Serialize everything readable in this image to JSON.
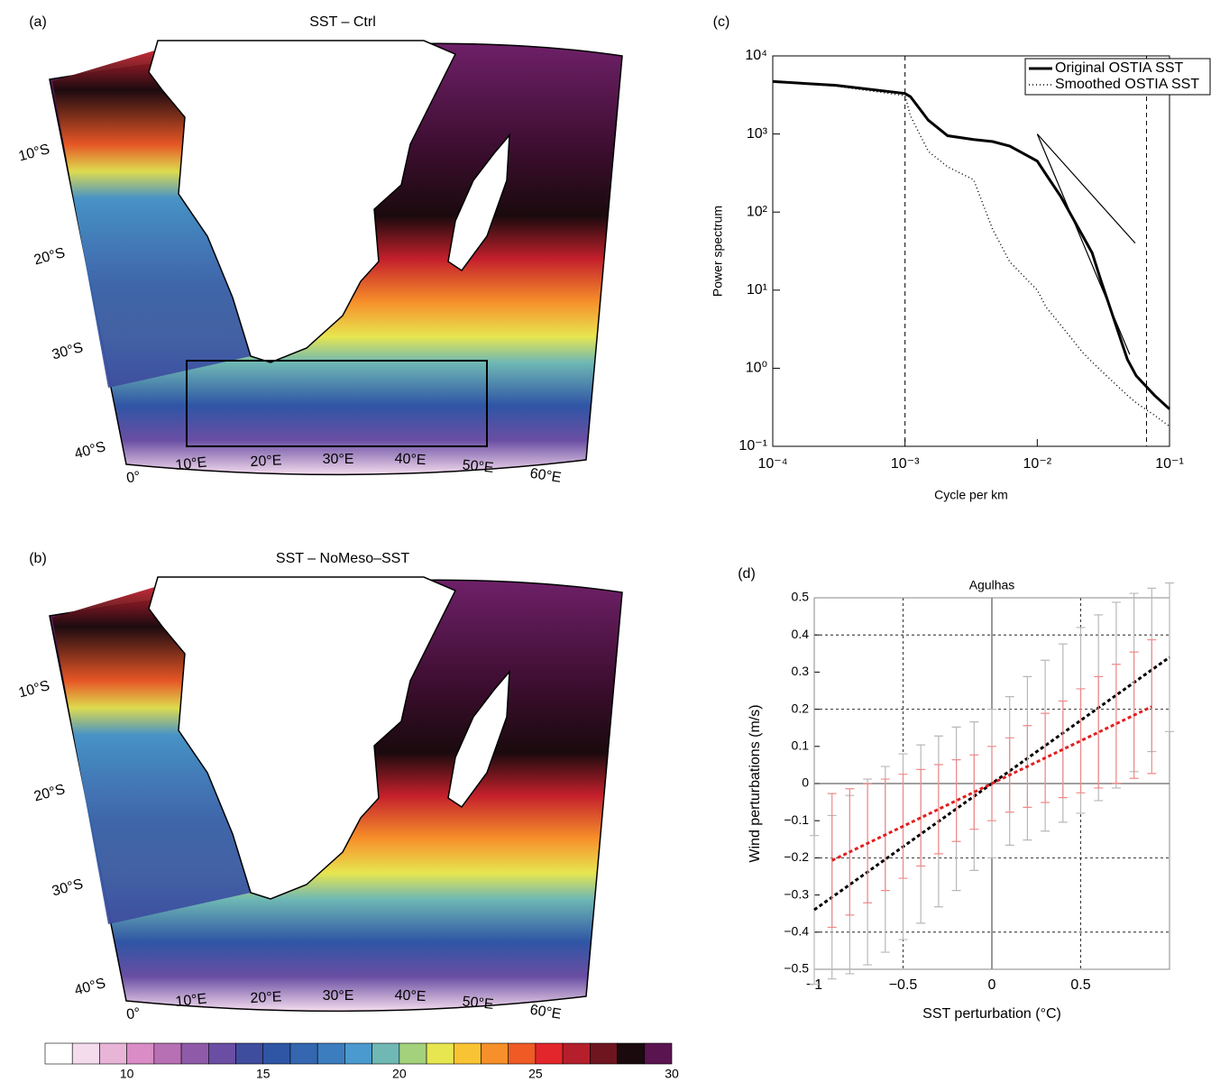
{
  "chart_data": [
    {
      "type": "map",
      "panel": "(a)",
      "title": "SST – Ctrl",
      "lat_labels": [
        "10°S",
        "20°S",
        "30°S",
        "40°S"
      ],
      "lon_labels": [
        "0°",
        "10°E",
        "20°E",
        "30°E",
        "40°E",
        "50°E",
        "60°E"
      ]
    },
    {
      "type": "map",
      "panel": "(b)",
      "title": "SST – NoMeso–SST",
      "lat_labels": [
        "10°S",
        "20°S",
        "30°S",
        "40°S"
      ],
      "lon_labels": [
        "0°",
        "10°E",
        "20°E",
        "30°E",
        "40°E",
        "50°E",
        "60°E"
      ]
    },
    {
      "type": "line",
      "panel": "(c)",
      "xlabel": "Cycle per km",
      "ylabel": "Power spectrum",
      "xlog": true,
      "ylog": true,
      "legend": "upper right",
      "xlim": [
        0.0001,
        0.1
      ],
      "ylim": [
        0.1,
        10000
      ],
      "xticks": [
        {
          "value": 0.0001,
          "label": "10⁻⁴"
        },
        {
          "value": 0.001,
          "label": "10⁻³"
        },
        {
          "value": 0.01,
          "label": "10⁻²"
        },
        {
          "value": 0.1,
          "label": "10⁻¹"
        }
      ],
      "yticks": [
        {
          "value": 0.1,
          "label": "10⁻¹"
        },
        {
          "value": 1,
          "label": "10⁰"
        },
        {
          "value": 10,
          "label": "10¹"
        },
        {
          "value": 100,
          "label": "10²"
        },
        {
          "value": 1000,
          "label": "10³"
        },
        {
          "value": 10000,
          "label": "10⁴"
        }
      ],
      "vlines": [
        0.001,
        0.067
      ],
      "reference_lines": [
        {
          "x": [
            0.01,
            0.055
          ],
          "y": [
            1000,
            40
          ]
        },
        {
          "x": [
            0.01,
            0.05
          ],
          "y": [
            1000,
            1.5
          ]
        }
      ],
      "x": [
        0.0001,
        0.0003,
        0.001,
        0.0011,
        0.0015,
        0.0021,
        0.0033,
        0.0046,
        0.0062,
        0.01,
        0.0117,
        0.015,
        0.022,
        0.026,
        0.03,
        0.048,
        0.056,
        0.077,
        0.1
      ],
      "series": [
        {
          "name": "Original OSTIA SST",
          "color": "#000000",
          "style": "solid",
          "values": [
            4700,
            4200,
            3300,
            3000,
            1500,
            950,
            850,
            800,
            700,
            450,
            300,
            160,
            50,
            30,
            14,
            1.3,
            0.8,
            0.45,
            0.3
          ]
        },
        {
          "name": "Smoothed OSTIA SST",
          "color": "#000000",
          "style": "dotted",
          "values": [
            4700,
            4100,
            3100,
            1700,
            600,
            380,
            260,
            60,
            23,
            10,
            6,
            3.6,
            1.6,
            1.2,
            0.95,
            0.45,
            0.36,
            0.25,
            0.18
          ]
        }
      ]
    },
    {
      "type": "errorbar",
      "panel": "(d)",
      "title": "Agulhas",
      "xlabel": "SST perturbation (°C)",
      "ylabel": "Wind perturbations (m/s)",
      "grid": true,
      "xlim": [
        -1,
        1
      ],
      "ylim": [
        -0.5,
        0.5
      ],
      "xticks": [
        {
          "value": -1,
          "label": "−1"
        },
        {
          "value": -0.5,
          "label": "−0.5"
        },
        0,
        0.5
      ],
      "yticks": [
        {
          "value": -0.5,
          "label": "−0.5"
        },
        {
          "value": -0.4,
          "label": "−0.4"
        },
        {
          "value": -0.3,
          "label": "−0.3"
        },
        {
          "value": -0.2,
          "label": "−0.2"
        },
        {
          "value": -0.1,
          "label": "−0.1"
        },
        0,
        0.1,
        0.2,
        0.3,
        0.4,
        0.5
      ],
      "series": [
        {
          "color": "#b8b8b8",
          "line_color": "#000000",
          "x": [
            -1,
            -0.9,
            -0.8,
            -0.7,
            -0.6,
            -0.5,
            -0.4,
            -0.3,
            -0.2,
            -0.1,
            0,
            0.1,
            0.2,
            0.3,
            0.4,
            0.5,
            0.6,
            0.7,
            0.8,
            0.9,
            1
          ],
          "values": [
            -0.34,
            -0.306,
            -0.272,
            -0.238,
            -0.204,
            -0.17,
            -0.136,
            -0.102,
            -0.068,
            -0.034,
            0,
            0.034,
            0.068,
            0.102,
            0.136,
            0.17,
            0.204,
            0.238,
            0.272,
            0.306,
            0.34
          ],
          "errors": [
            0.2,
            0.22,
            0.24,
            0.25,
            0.25,
            0.25,
            0.24,
            0.23,
            0.22,
            0.2,
            0.2,
            0.2,
            0.22,
            0.23,
            0.24,
            0.25,
            0.25,
            0.25,
            0.24,
            0.22,
            0.2
          ]
        },
        {
          "color": "#f08a8a",
          "line_color": "#e02020",
          "x": [
            -0.9,
            -0.8,
            -0.7,
            -0.6,
            -0.5,
            -0.4,
            -0.3,
            -0.2,
            -0.1,
            0,
            0.1,
            0.2,
            0.3,
            0.4,
            0.5,
            0.6,
            0.7,
            0.8,
            0.9
          ],
          "values": [
            -0.207,
            -0.184,
            -0.161,
            -0.138,
            -0.115,
            -0.092,
            -0.069,
            -0.046,
            -0.023,
            0,
            0.023,
            0.046,
            0.069,
            0.092,
            0.115,
            0.138,
            0.161,
            0.184,
            0.207
          ],
          "errors": [
            0.18,
            0.17,
            0.16,
            0.15,
            0.14,
            0.13,
            0.12,
            0.11,
            0.1,
            0.1,
            0.1,
            0.11,
            0.12,
            0.13,
            0.14,
            0.15,
            0.16,
            0.17,
            0.18
          ]
        }
      ]
    },
    {
      "type": "colorbar",
      "lim": [
        7,
        30
      ],
      "ticks": [
        10,
        15,
        20,
        25,
        30
      ],
      "colors": [
        "#ffffff",
        "#f4dced",
        "#e8b5d9",
        "#d98cc5",
        "#b870b5",
        "#8f5ba8",
        "#6a4ea3",
        "#3f4d9e",
        "#2f55a5",
        "#3566b0",
        "#3c7dbf",
        "#4a9acf",
        "#6fb8b4",
        "#a3d17c",
        "#e7e650",
        "#f9c433",
        "#f7902a",
        "#ef5a25",
        "#e3262b",
        "#b51f2c",
        "#6e1520",
        "#1a0a0d",
        "#5a1450"
      ]
    }
  ]
}
